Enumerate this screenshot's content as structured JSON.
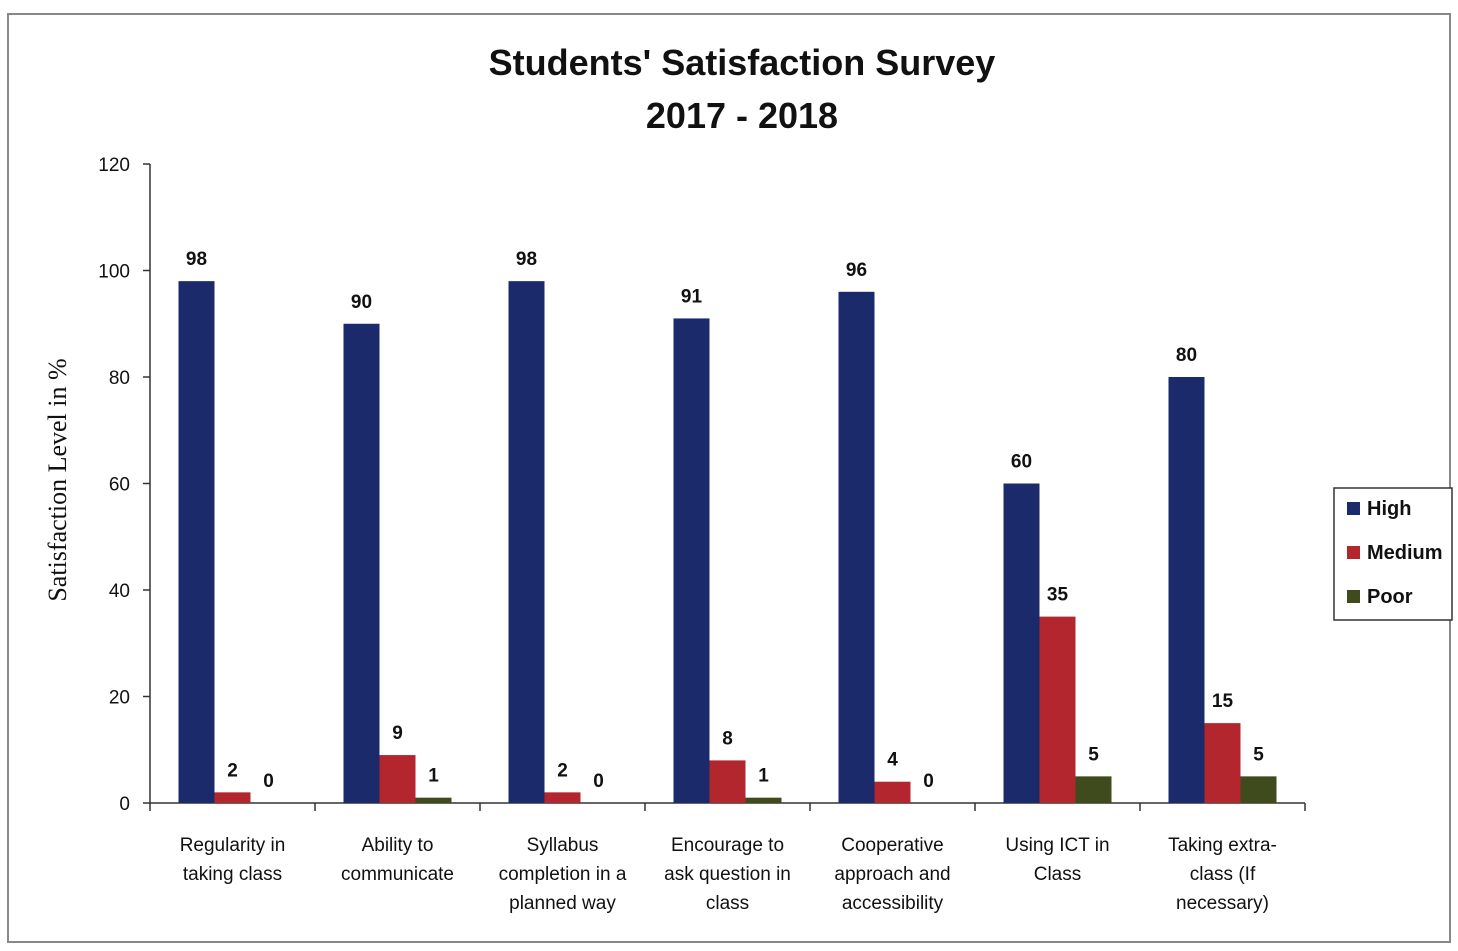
{
  "chart_data": {
    "type": "bar",
    "title": [
      "Students' Satisfaction Survey",
      "2017 - 2018"
    ],
    "ylabel": "Satisfaction Level in %",
    "xlabel": "",
    "ylim": [
      0,
      120
    ],
    "yticks": [
      0,
      20,
      40,
      60,
      80,
      100,
      120
    ],
    "legend_position": "right",
    "categories": [
      [
        "Regularity in",
        "taking class"
      ],
      [
        "Ability to",
        "communicate"
      ],
      [
        "Syllabus",
        "completion in a",
        "planned way"
      ],
      [
        "Encourage to",
        "ask question in",
        "class"
      ],
      [
        "Cooperative",
        "approach and",
        "accessibility"
      ],
      [
        "Using ICT in",
        "Class"
      ],
      [
        "Taking extra-",
        "class (If",
        "necessary)"
      ]
    ],
    "series": [
      {
        "name": "High",
        "color": "#1b2a6b",
        "values": [
          98,
          90,
          98,
          91,
          96,
          60,
          80
        ]
      },
      {
        "name": "Medium",
        "color": "#b3262d",
        "values": [
          2,
          9,
          2,
          8,
          4,
          35,
          15
        ]
      },
      {
        "name": "Poor",
        "color": "#3f4a1d",
        "values": [
          0,
          1,
          0,
          1,
          0,
          5,
          5
        ]
      }
    ]
  }
}
